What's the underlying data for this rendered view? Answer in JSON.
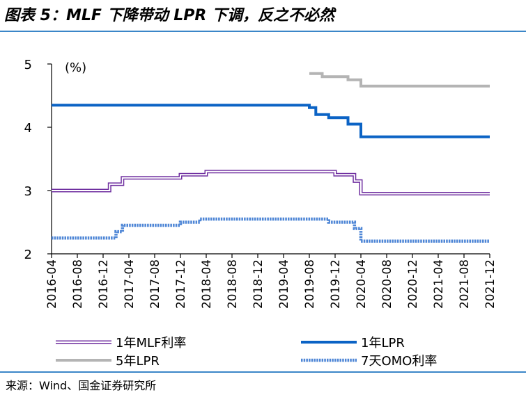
{
  "figure": {
    "title": "图表 5：MLF 下降带动 LPR 下调，反之不必然",
    "source": "来源：Wind、国金证券研究所",
    "accent_color": "#3b86c8"
  },
  "chart_data": {
    "type": "line",
    "title": "",
    "ylabel": "(%)",
    "xlabel": "",
    "ylim": [
      2,
      5
    ],
    "yticks": [
      "2",
      "3",
      "4",
      "5"
    ],
    "xlim": [
      "2016-04",
      "2021-12"
    ],
    "xticks": [
      "2016-04",
      "2016-08",
      "2016-12",
      "2017-04",
      "2017-08",
      "2017-12",
      "2018-04",
      "2018-08",
      "2018-12",
      "2019-04",
      "2019-08",
      "2019-12",
      "2020-04",
      "2020-08",
      "2020-12",
      "2021-04",
      "2021-08",
      "2021-12"
    ],
    "grid": false,
    "legend_position": "bottom",
    "series": [
      {
        "name": "1年MLF利率",
        "color": "#7030a0",
        "fill": "#ffffff",
        "style": "double-line",
        "points": [
          [
            "2016-04",
            3.0
          ],
          [
            "2017-01",
            3.0
          ],
          [
            "2017-01",
            3.1
          ],
          [
            "2017-03",
            3.1
          ],
          [
            "2017-03",
            3.2
          ],
          [
            "2017-12",
            3.2
          ],
          [
            "2017-12",
            3.25
          ],
          [
            "2018-04",
            3.25
          ],
          [
            "2018-04",
            3.3
          ],
          [
            "2019-12",
            3.3
          ],
          [
            "2019-12",
            3.25
          ],
          [
            "2020-03",
            3.25
          ],
          [
            "2020-03",
            3.15
          ],
          [
            "2020-04",
            3.15
          ],
          [
            "2020-04",
            2.95
          ],
          [
            "2021-12",
            2.95
          ]
        ]
      },
      {
        "name": "1年LPR",
        "color": "#0b63c5",
        "style": "solid",
        "points": [
          [
            "2016-04",
            4.35
          ],
          [
            "2019-08",
            4.35
          ],
          [
            "2019-08",
            4.31
          ],
          [
            "2019-09",
            4.31
          ],
          [
            "2019-09",
            4.2
          ],
          [
            "2019-11",
            4.2
          ],
          [
            "2019-11",
            4.15
          ],
          [
            "2020-02",
            4.15
          ],
          [
            "2020-02",
            4.05
          ],
          [
            "2020-04",
            4.05
          ],
          [
            "2020-04",
            3.85
          ],
          [
            "2021-12",
            3.85
          ]
        ]
      },
      {
        "name": "5年LPR",
        "color": "#b4b4b4",
        "style": "solid",
        "points": [
          [
            "2019-08",
            4.85
          ],
          [
            "2019-10",
            4.85
          ],
          [
            "2019-10",
            4.8
          ],
          [
            "2020-02",
            4.8
          ],
          [
            "2020-02",
            4.75
          ],
          [
            "2020-04",
            4.75
          ],
          [
            "2020-04",
            4.65
          ],
          [
            "2021-12",
            4.65
          ]
        ]
      },
      {
        "name": "7天OMO利率",
        "color": "#4e86d6",
        "style": "dotted",
        "points": [
          [
            "2016-04",
            2.25
          ],
          [
            "2017-02",
            2.25
          ],
          [
            "2017-02",
            2.35
          ],
          [
            "2017-03",
            2.35
          ],
          [
            "2017-03",
            2.45
          ],
          [
            "2017-12",
            2.45
          ],
          [
            "2017-12",
            2.5
          ],
          [
            "2018-03",
            2.5
          ],
          [
            "2018-03",
            2.55
          ],
          [
            "2019-11",
            2.55
          ],
          [
            "2019-11",
            2.5
          ],
          [
            "2020-03",
            2.5
          ],
          [
            "2020-03",
            2.4
          ],
          [
            "2020-04",
            2.4
          ],
          [
            "2020-04",
            2.2
          ],
          [
            "2021-12",
            2.2
          ]
        ]
      }
    ]
  }
}
